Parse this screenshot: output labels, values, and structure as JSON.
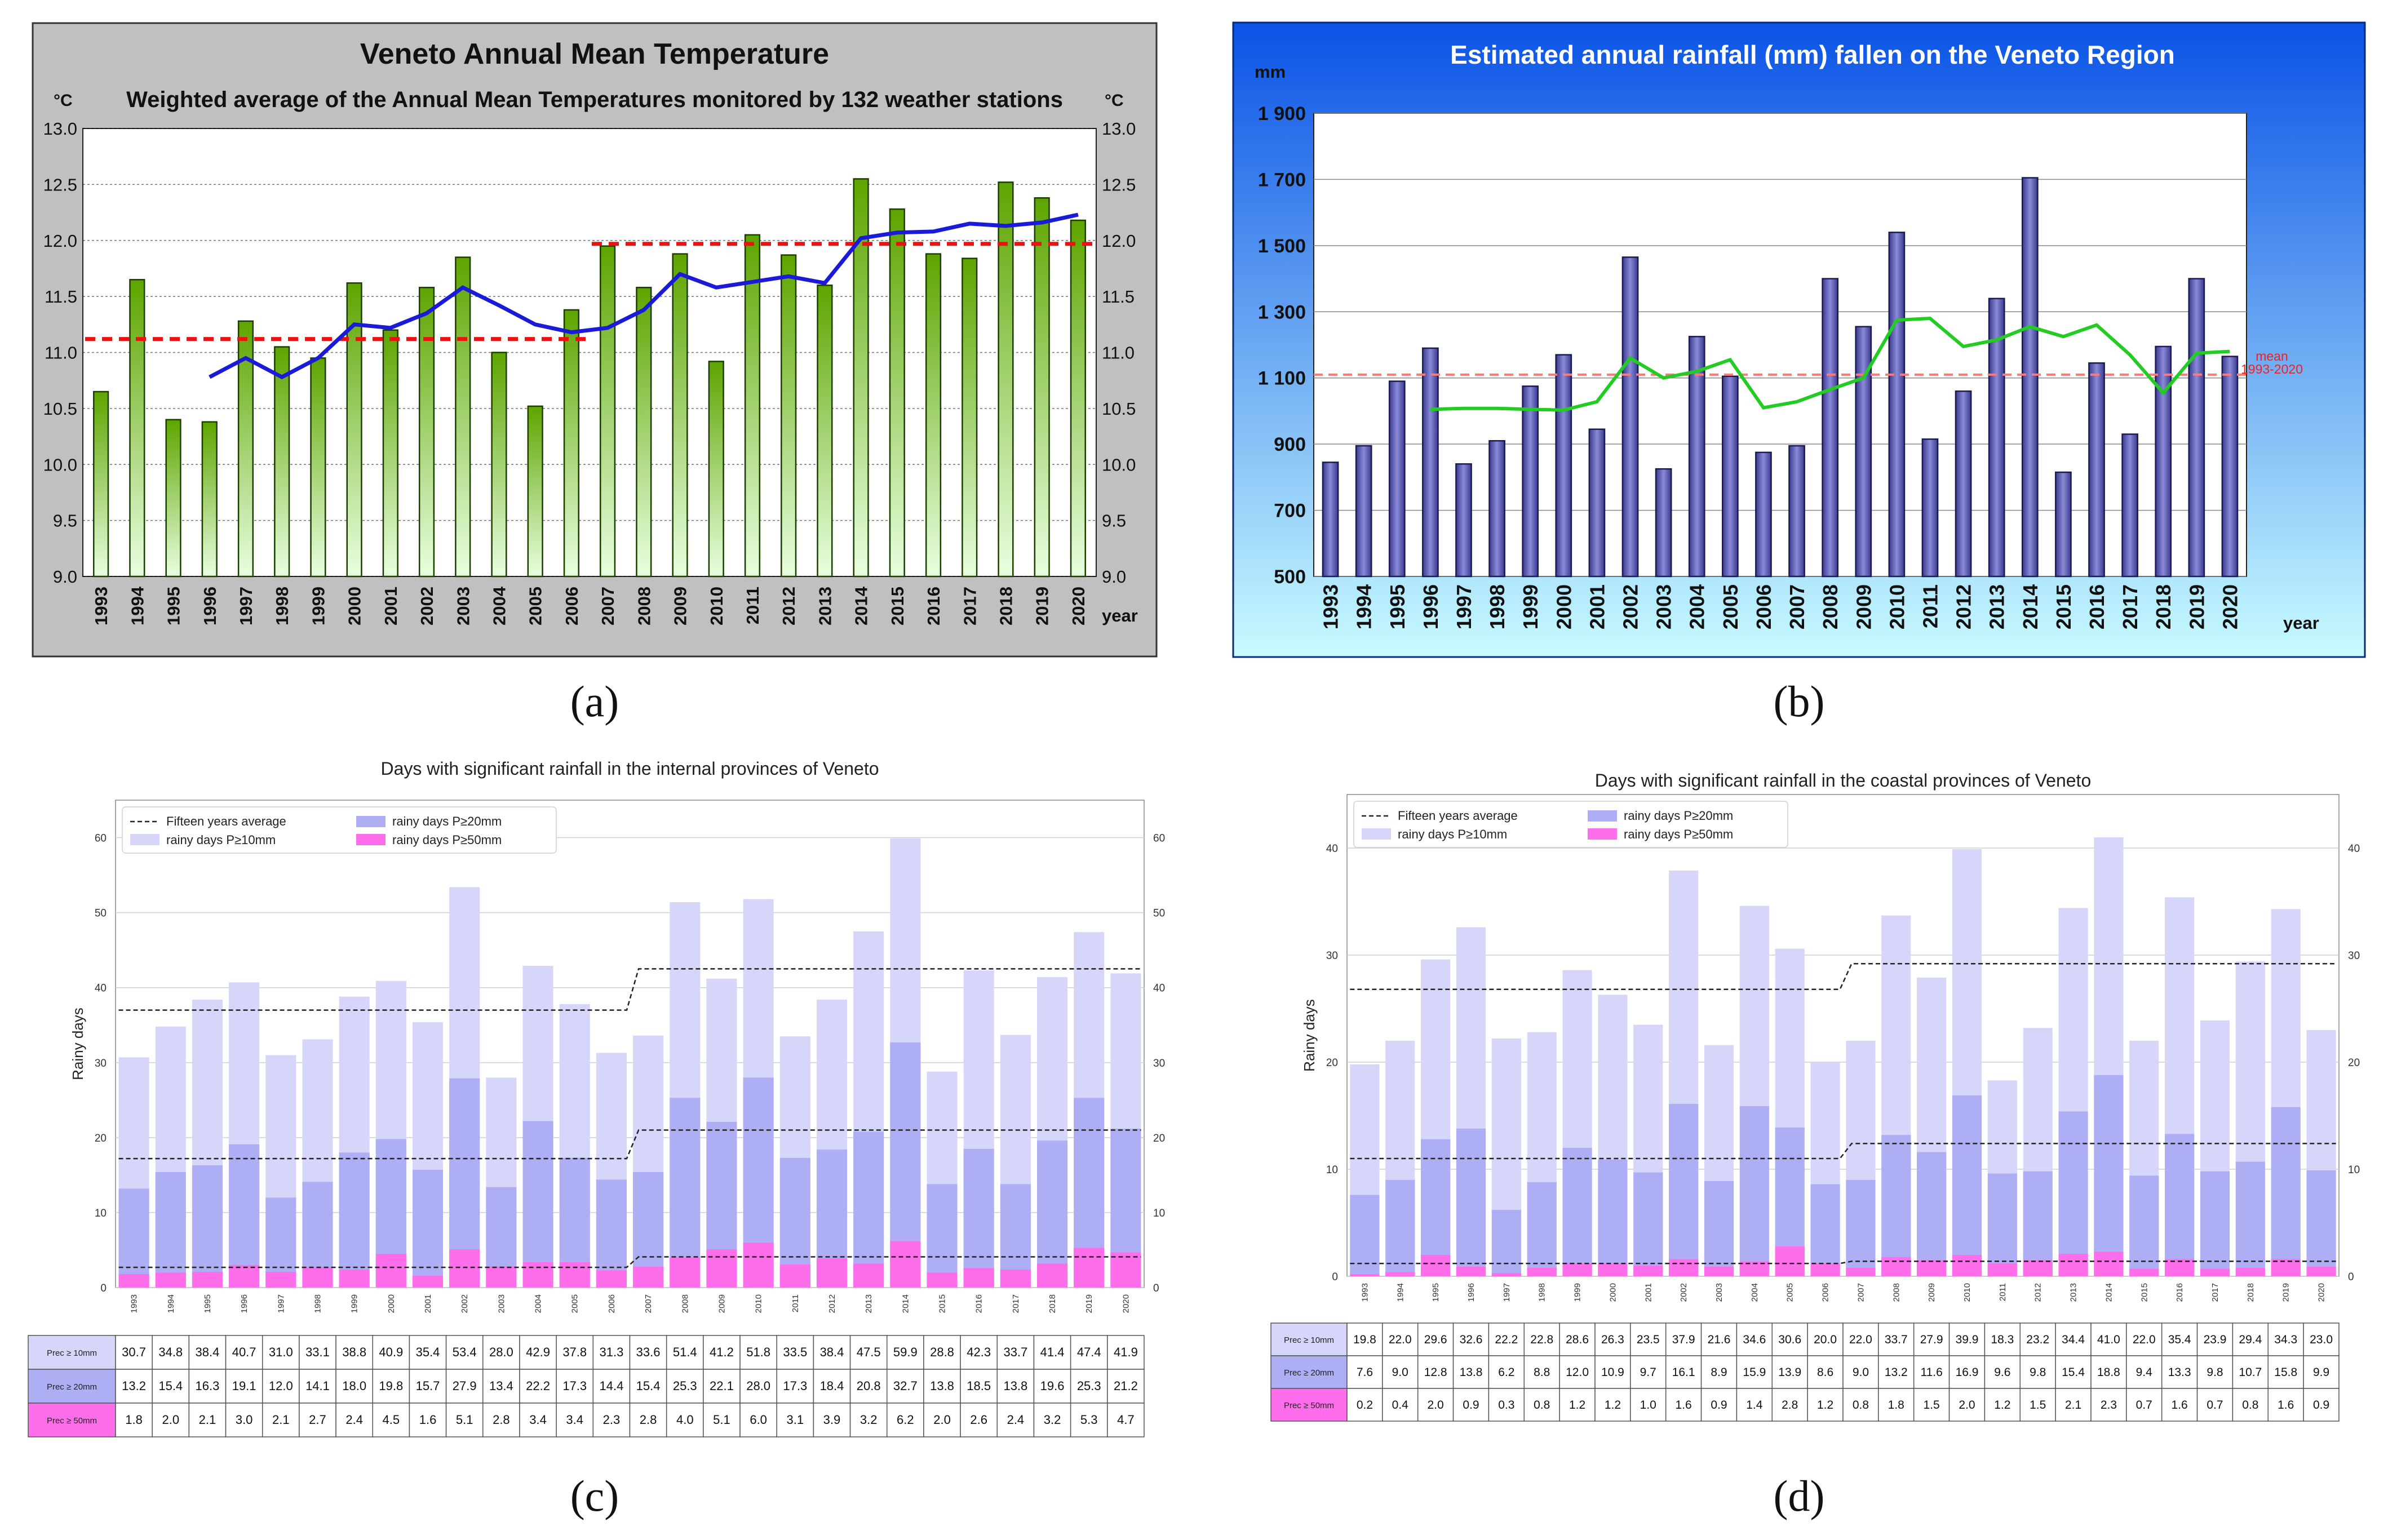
{
  "captions": [
    "(a)",
    "(b)",
    "(c)",
    "(d)"
  ],
  "colors": {
    "a_bar_top": "#5ea400",
    "a_bar_bottom": "#e8ffe0",
    "a_line": "#1a1ad8",
    "a_mean": "#ee1111",
    "a_bg": "#c0c0c0",
    "b_bar": "#5a5aa8",
    "b_line": "#22cc22",
    "b_mean": "#ff7777",
    "b_bg_top": "#0a53e6",
    "b_bg_bottom": "#c8fbff",
    "p10": "#d6d6fb",
    "p20": "#aeaef5",
    "p50": "#ff6eea"
  },
  "chart_data": [
    {
      "type": "bar",
      "title": "Veneto Annual Mean Temperature",
      "subtitle": "Weighted average of the Annual Mean Temperatures monitored by 132 weather stations",
      "ylabel": "°C",
      "ylabel_right": "°C",
      "xlabel": "year",
      "ylim": [
        9.0,
        13.0
      ],
      "yticks": [
        "9.0",
        "9.5",
        "10.0",
        "10.5",
        "11.0",
        "11.5",
        "12.0",
        "12.5",
        "13.0"
      ],
      "categories": [
        "1993",
        "1994",
        "1995",
        "1996",
        "1997",
        "1998",
        "1999",
        "2000",
        "2001",
        "2002",
        "2003",
        "2004",
        "2005",
        "2006",
        "2007",
        "2008",
        "2009",
        "2010",
        "2011",
        "2012",
        "2013",
        "2014",
        "2015",
        "2016",
        "2017",
        "2018",
        "2019",
        "2020"
      ],
      "values": [
        10.65,
        11.65,
        10.4,
        10.38,
        11.28,
        11.05,
        10.95,
        11.62,
        11.2,
        11.58,
        11.85,
        11.0,
        10.52,
        11.38,
        11.95,
        11.58,
        11.88,
        10.92,
        12.05,
        11.87,
        11.6,
        12.55,
        12.28,
        11.88,
        11.84,
        12.52,
        12.38,
        12.18
      ],
      "moving_average": [
        null,
        null,
        null,
        10.78,
        10.95,
        10.78,
        10.95,
        11.25,
        11.22,
        11.35,
        11.58,
        11.42,
        11.25,
        11.18,
        11.22,
        11.38,
        11.7,
        11.58,
        11.63,
        11.68,
        11.62,
        12.02,
        12.07,
        12.08,
        12.15,
        12.13,
        12.16,
        12.23
      ],
      "mean_lines": [
        {
          "from": "1993",
          "to": "2006",
          "value": 11.12
        },
        {
          "from": "2007",
          "to": "2020",
          "value": 11.97
        }
      ]
    },
    {
      "type": "bar",
      "title": "Estimated annual rainfall  (mm) fallen on the Veneto Region",
      "ylabel": "mm",
      "xlabel": "year",
      "ylim": [
        500,
        1900
      ],
      "yticks": [
        "500",
        "700",
        "900",
        "1 100",
        "1 300",
        "1 500",
        "1 700",
        "1 900"
      ],
      "categories": [
        "1993",
        "1994",
        "1995",
        "1996",
        "1997",
        "1998",
        "1999",
        "2000",
        "2001",
        "2002",
        "2003",
        "2004",
        "2005",
        "2006",
        "2007",
        "2008",
        "2009",
        "2010",
        "2011",
        "2012",
        "2013",
        "2014",
        "2015",
        "2016",
        "2017",
        "2018",
        "2019",
        "2020"
      ],
      "values": [
        845,
        895,
        1090,
        1190,
        840,
        910,
        1075,
        1170,
        945,
        1465,
        825,
        1225,
        1105,
        875,
        895,
        1400,
        1255,
        1540,
        915,
        1060,
        1340,
        1705,
        815,
        1145,
        930,
        1195,
        1400,
        1165
      ],
      "moving_average": [
        null,
        null,
        null,
        1005,
        1008,
        1008,
        1005,
        1003,
        1028,
        1160,
        1100,
        1120,
        1155,
        1010,
        1028,
        1065,
        1100,
        1275,
        1280,
        1195,
        1215,
        1255,
        1225,
        1260,
        1170,
        1055,
        1175,
        1180
      ],
      "mean": 1110,
      "mean_label": [
        "mean",
        "1993-2020"
      ]
    },
    {
      "type": "bar",
      "title": "Days with significant rainfall in the internal provinces of Veneto",
      "ylabel": "Rainy days",
      "ylim": [
        0,
        65
      ],
      "yticks": [
        0,
        10,
        20,
        30,
        40,
        50,
        60
      ],
      "legend": [
        "Fifteen years average",
        "rainy days P≥10mm",
        "rainy days P≥20mm",
        "rainy days P≥50mm"
      ],
      "categories": [
        "1993",
        "1994",
        "1995",
        "1996",
        "1997",
        "1998",
        "1999",
        "2000",
        "2001",
        "2002",
        "2003",
        "2004",
        "2005",
        "2006",
        "2007",
        "2008",
        "2009",
        "2010",
        "2011",
        "2012",
        "2013",
        "2014",
        "2015",
        "2016",
        "2017",
        "2018",
        "2019",
        "2020"
      ],
      "row_labels": [
        "Prec ≥ 10mm",
        "Prec ≥ 20mm",
        "Prec ≥ 50mm"
      ],
      "series": [
        {
          "name": "Prec ≥ 10mm",
          "values": [
            30.7,
            34.8,
            38.4,
            40.7,
            31.0,
            33.1,
            38.8,
            40.9,
            35.4,
            53.4,
            28.0,
            42.9,
            37.8,
            31.3,
            33.6,
            51.4,
            41.2,
            51.8,
            33.5,
            38.4,
            47.5,
            59.9,
            28.8,
            42.3,
            33.7,
            41.4,
            47.4,
            41.9
          ]
        },
        {
          "name": "Prec ≥ 20mm",
          "values": [
            13.2,
            15.4,
            16.3,
            19.1,
            12.0,
            14.1,
            18.0,
            19.8,
            15.7,
            27.9,
            13.4,
            22.2,
            17.3,
            14.4,
            15.4,
            25.3,
            22.1,
            28.0,
            17.3,
            18.4,
            20.8,
            32.7,
            13.8,
            18.5,
            13.8,
            19.6,
            25.3,
            21.2
          ]
        },
        {
          "name": "Prec ≥ 50mm",
          "values": [
            1.8,
            2.0,
            2.1,
            3.0,
            2.1,
            2.7,
            2.4,
            4.5,
            1.6,
            5.1,
            2.8,
            3.4,
            3.4,
            2.3,
            2.8,
            4.0,
            5.1,
            6.0,
            3.1,
            3.9,
            3.2,
            6.2,
            2.0,
            2.6,
            2.4,
            3.2,
            5.3,
            4.7
          ]
        }
      ],
      "averages": [
        {
          "series": "Prec ≥ 10mm",
          "before": 37.0,
          "after": 42.5
        },
        {
          "series": "Prec ≥ 20mm",
          "before": 17.2,
          "after": 21.0
        },
        {
          "series": "Prec ≥ 50mm",
          "before": 2.7,
          "after": 4.1
        }
      ]
    },
    {
      "type": "bar",
      "title": "Days with significant rainfall in the coastal provinces of Veneto",
      "ylabel": "Rainy days",
      "ylim": [
        0,
        45
      ],
      "yticks": [
        0,
        10,
        20,
        30,
        40
      ],
      "legend": [
        "Fifteen years average",
        "rainy days P≥10mm",
        "rainy days P≥20mm",
        "rainy days P≥50mm"
      ],
      "categories": [
        "1993",
        "1994",
        "1995",
        "1996",
        "1997",
        "1998",
        "1999",
        "2000",
        "2001",
        "2002",
        "2003",
        "2004",
        "2005",
        "2006",
        "2007",
        "2008",
        "2009",
        "2010",
        "2011",
        "2012",
        "2013",
        "2014",
        "2015",
        "2016",
        "2017",
        "2018",
        "2019",
        "2020"
      ],
      "row_labels": [
        "Prec ≥ 10mm",
        "Prec ≥ 20mm",
        "Prec ≥ 50mm"
      ],
      "series": [
        {
          "name": "Prec ≥ 10mm",
          "values": [
            19.8,
            22.0,
            29.6,
            32.6,
            22.2,
            22.8,
            28.6,
            26.3,
            23.5,
            37.9,
            21.6,
            34.6,
            30.6,
            20.0,
            22.0,
            33.7,
            27.9,
            39.9,
            18.3,
            23.2,
            34.4,
            41.0,
            22.0,
            35.4,
            23.9,
            29.4,
            34.3,
            23.0
          ]
        },
        {
          "name": "Prec ≥ 20mm",
          "values": [
            7.6,
            9.0,
            12.8,
            13.8,
            6.2,
            8.8,
            12.0,
            10.9,
            9.7,
            16.1,
            8.9,
            15.9,
            13.9,
            8.6,
            9.0,
            13.2,
            11.6,
            16.9,
            9.6,
            9.8,
            15.4,
            18.8,
            9.4,
            13.3,
            9.8,
            10.7,
            15.8,
            9.9
          ]
        },
        {
          "name": "Prec ≥ 50mm",
          "values": [
            0.2,
            0.4,
            2.0,
            0.9,
            0.3,
            0.8,
            1.2,
            1.2,
            1.0,
            1.6,
            0.9,
            1.4,
            2.8,
            1.2,
            0.8,
            1.8,
            1.5,
            2.0,
            1.2,
            1.5,
            2.1,
            2.3,
            0.7,
            1.6,
            0.7,
            0.8,
            1.6,
            0.9
          ]
        }
      ],
      "averages": [
        {
          "series": "Prec ≥ 10mm",
          "before": 26.8,
          "after": 29.2
        },
        {
          "series": "Prec ≥ 20mm",
          "before": 11.0,
          "after": 12.4
        },
        {
          "series": "Prec ≥ 50mm",
          "before": 1.2,
          "after": 1.4
        }
      ]
    }
  ]
}
